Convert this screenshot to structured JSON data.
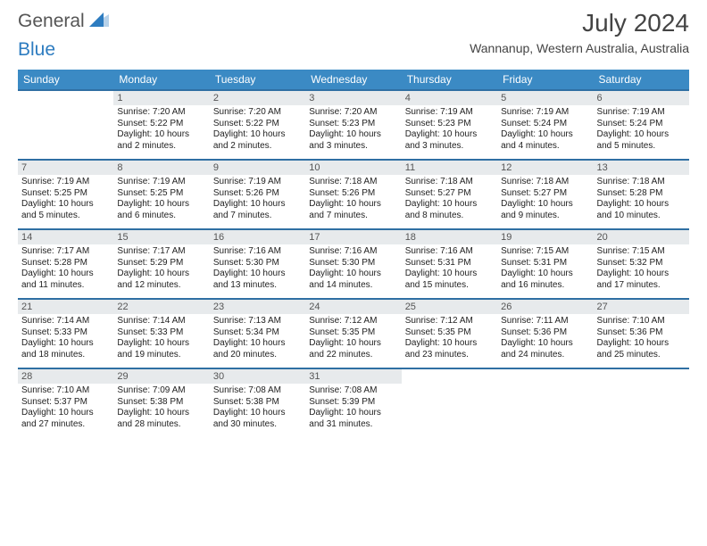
{
  "logo": {
    "part1": "General",
    "part2": "Blue"
  },
  "title": "July 2024",
  "subtitle": "Wannanup, Western Australia, Australia",
  "days": [
    "Sunday",
    "Monday",
    "Tuesday",
    "Wednesday",
    "Thursday",
    "Friday",
    "Saturday"
  ],
  "colors": {
    "header": "#3b8ac4",
    "divider": "#2f6fa3",
    "daynum_bg": "#e7eaec"
  },
  "weeks": [
    [
      null,
      {
        "n": "1",
        "lines": [
          "Sunrise: 7:20 AM",
          "Sunset: 5:22 PM",
          "Daylight: 10 hours and 2 minutes."
        ]
      },
      {
        "n": "2",
        "lines": [
          "Sunrise: 7:20 AM",
          "Sunset: 5:22 PM",
          "Daylight: 10 hours and 2 minutes."
        ]
      },
      {
        "n": "3",
        "lines": [
          "Sunrise: 7:20 AM",
          "Sunset: 5:23 PM",
          "Daylight: 10 hours and 3 minutes."
        ]
      },
      {
        "n": "4",
        "lines": [
          "Sunrise: 7:19 AM",
          "Sunset: 5:23 PM",
          "Daylight: 10 hours and 3 minutes."
        ]
      },
      {
        "n": "5",
        "lines": [
          "Sunrise: 7:19 AM",
          "Sunset: 5:24 PM",
          "Daylight: 10 hours and 4 minutes."
        ]
      },
      {
        "n": "6",
        "lines": [
          "Sunrise: 7:19 AM",
          "Sunset: 5:24 PM",
          "Daylight: 10 hours and 5 minutes."
        ]
      }
    ],
    [
      {
        "n": "7",
        "lines": [
          "Sunrise: 7:19 AM",
          "Sunset: 5:25 PM",
          "Daylight: 10 hours and 5 minutes."
        ]
      },
      {
        "n": "8",
        "lines": [
          "Sunrise: 7:19 AM",
          "Sunset: 5:25 PM",
          "Daylight: 10 hours and 6 minutes."
        ]
      },
      {
        "n": "9",
        "lines": [
          "Sunrise: 7:19 AM",
          "Sunset: 5:26 PM",
          "Daylight: 10 hours and 7 minutes."
        ]
      },
      {
        "n": "10",
        "lines": [
          "Sunrise: 7:18 AM",
          "Sunset: 5:26 PM",
          "Daylight: 10 hours and 7 minutes."
        ]
      },
      {
        "n": "11",
        "lines": [
          "Sunrise: 7:18 AM",
          "Sunset: 5:27 PM",
          "Daylight: 10 hours and 8 minutes."
        ]
      },
      {
        "n": "12",
        "lines": [
          "Sunrise: 7:18 AM",
          "Sunset: 5:27 PM",
          "Daylight: 10 hours and 9 minutes."
        ]
      },
      {
        "n": "13",
        "lines": [
          "Sunrise: 7:18 AM",
          "Sunset: 5:28 PM",
          "Daylight: 10 hours and 10 minutes."
        ]
      }
    ],
    [
      {
        "n": "14",
        "lines": [
          "Sunrise: 7:17 AM",
          "Sunset: 5:28 PM",
          "Daylight: 10 hours and 11 minutes."
        ]
      },
      {
        "n": "15",
        "lines": [
          "Sunrise: 7:17 AM",
          "Sunset: 5:29 PM",
          "Daylight: 10 hours and 12 minutes."
        ]
      },
      {
        "n": "16",
        "lines": [
          "Sunrise: 7:16 AM",
          "Sunset: 5:30 PM",
          "Daylight: 10 hours and 13 minutes."
        ]
      },
      {
        "n": "17",
        "lines": [
          "Sunrise: 7:16 AM",
          "Sunset: 5:30 PM",
          "Daylight: 10 hours and 14 minutes."
        ]
      },
      {
        "n": "18",
        "lines": [
          "Sunrise: 7:16 AM",
          "Sunset: 5:31 PM",
          "Daylight: 10 hours and 15 minutes."
        ]
      },
      {
        "n": "19",
        "lines": [
          "Sunrise: 7:15 AM",
          "Sunset: 5:31 PM",
          "Daylight: 10 hours and 16 minutes."
        ]
      },
      {
        "n": "20",
        "lines": [
          "Sunrise: 7:15 AM",
          "Sunset: 5:32 PM",
          "Daylight: 10 hours and 17 minutes."
        ]
      }
    ],
    [
      {
        "n": "21",
        "lines": [
          "Sunrise: 7:14 AM",
          "Sunset: 5:33 PM",
          "Daylight: 10 hours and 18 minutes."
        ]
      },
      {
        "n": "22",
        "lines": [
          "Sunrise: 7:14 AM",
          "Sunset: 5:33 PM",
          "Daylight: 10 hours and 19 minutes."
        ]
      },
      {
        "n": "23",
        "lines": [
          "Sunrise: 7:13 AM",
          "Sunset: 5:34 PM",
          "Daylight: 10 hours and 20 minutes."
        ]
      },
      {
        "n": "24",
        "lines": [
          "Sunrise: 7:12 AM",
          "Sunset: 5:35 PM",
          "Daylight: 10 hours and 22 minutes."
        ]
      },
      {
        "n": "25",
        "lines": [
          "Sunrise: 7:12 AM",
          "Sunset: 5:35 PM",
          "Daylight: 10 hours and 23 minutes."
        ]
      },
      {
        "n": "26",
        "lines": [
          "Sunrise: 7:11 AM",
          "Sunset: 5:36 PM",
          "Daylight: 10 hours and 24 minutes."
        ]
      },
      {
        "n": "27",
        "lines": [
          "Sunrise: 7:10 AM",
          "Sunset: 5:36 PM",
          "Daylight: 10 hours and 25 minutes."
        ]
      }
    ],
    [
      {
        "n": "28",
        "lines": [
          "Sunrise: 7:10 AM",
          "Sunset: 5:37 PM",
          "Daylight: 10 hours and 27 minutes."
        ]
      },
      {
        "n": "29",
        "lines": [
          "Sunrise: 7:09 AM",
          "Sunset: 5:38 PM",
          "Daylight: 10 hours and 28 minutes."
        ]
      },
      {
        "n": "30",
        "lines": [
          "Sunrise: 7:08 AM",
          "Sunset: 5:38 PM",
          "Daylight: 10 hours and 30 minutes."
        ]
      },
      {
        "n": "31",
        "lines": [
          "Sunrise: 7:08 AM",
          "Sunset: 5:39 PM",
          "Daylight: 10 hours and 31 minutes."
        ]
      },
      null,
      null,
      null
    ]
  ]
}
